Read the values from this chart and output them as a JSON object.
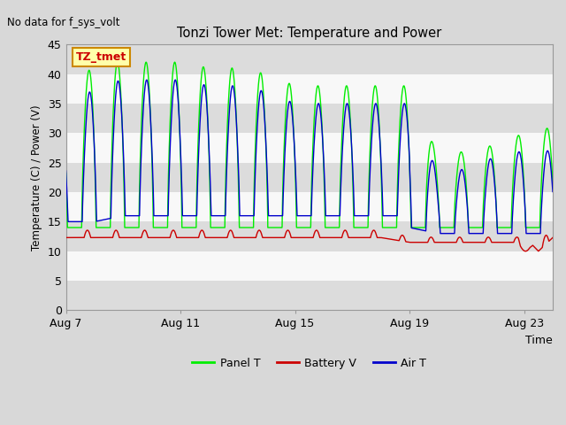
{
  "title": "Tonzi Tower Met: Temperature and Power",
  "top_left_text": "No data for f_sys_volt",
  "ylabel": "Temperature (C) / Power (V)",
  "xlabel": "Time",
  "ylim": [
    0,
    45
  ],
  "yticks": [
    0,
    5,
    10,
    15,
    20,
    25,
    30,
    35,
    40,
    45
  ],
  "xtick_labels": [
    "Aug 7",
    "Aug 11",
    "Aug 15",
    "Aug 19",
    "Aug 23"
  ],
  "xtick_positions": [
    0,
    4,
    8,
    12,
    16
  ],
  "fig_bg_color": "#d8d8d8",
  "plot_bg_color": "#f0f0f0",
  "band_dark_color": "#dcdcdc",
  "band_light_color": "#f8f8f8",
  "green_color": "#00ee00",
  "red_color": "#cc0000",
  "blue_color": "#0000cc",
  "legend_items": [
    "Panel T",
    "Battery V",
    "Air T"
  ],
  "legend_colors": [
    "#00ee00",
    "#cc0000",
    "#0000cc"
  ],
  "annotation_text": "TZ_tmet",
  "annotation_bg": "#ffffaa",
  "annotation_border": "#cc8800",
  "annotation_text_color": "#cc0000"
}
